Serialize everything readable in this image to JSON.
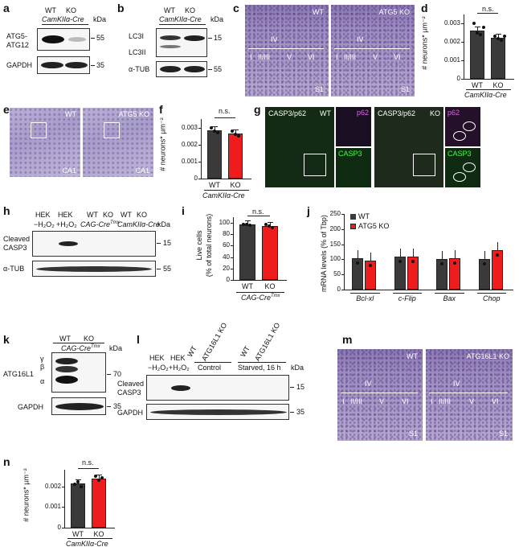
{
  "panel_labels": [
    "a",
    "b",
    "c",
    "d",
    "e",
    "f",
    "g",
    "h",
    "i",
    "j",
    "k",
    "l",
    "m",
    "n"
  ],
  "a": {
    "WT": "WT",
    "KO": "KO",
    "genotype": "CamKIIα-Cre",
    "kda": "kDa",
    "band1": "ATG5-",
    "band1b": "ATG12",
    "band2": "GAPDH",
    "m1": "55",
    "m2": "35"
  },
  "b": {
    "WT": "WT",
    "KO": "KO",
    "genotype": "CamKIIα-Cre",
    "kda": "kDa",
    "band1": "LC3I",
    "band1b": "LC3II",
    "band2": "α-TUB",
    "m1": "15",
    "m2": "55"
  },
  "c": {
    "wt_label": "WT",
    "ko_label": "ATG5 KO",
    "region": "S1",
    "layers": [
      "I",
      "II/III",
      "IV",
      "V",
      "VI"
    ]
  },
  "d": {
    "ylabel": "# neurons* µm⁻²",
    "sig": "n.s.",
    "genotype": "CamKIIα-Cre",
    "yticks": [
      "0",
      "0.001",
      "0.002",
      "0.003"
    ]
  },
  "e": {
    "wt_label": "WT",
    "ko_label": "ATG5 KO",
    "region": "CA1"
  },
  "f": {
    "ylabel": "# neurons* µm⁻²",
    "sig": "n.s.",
    "genotype": "CamKIIα-Cre",
    "yticks": [
      "0",
      "0.001",
      "0.002",
      "0.003"
    ]
  },
  "g": {
    "wt_title": "CASP3/p62",
    "wt_label": "WT",
    "ko_title": "CASP3/p62",
    "ko_label": "KO",
    "p62": "p62",
    "casp3": "CASP3"
  },
  "h": {
    "lanes": [
      "HEK",
      "HEK",
      "WT",
      "KO",
      "WT",
      "KO"
    ],
    "treat1": "−H₂O₂",
    "treat2": "+H₂O₂",
    "g1": "CAG-Cre",
    "g1sup": "Tmx",
    "g2": "CamKIIα-Cre",
    "kda": "kDa",
    "band1": "Cleaved",
    "band1b": "CASP3",
    "band2": "α-TUB",
    "m1": "15",
    "m2": "55"
  },
  "i": {
    "ylabel1": "Live cells",
    "ylabel2": "(% of total neurons)",
    "sig": "n.s.",
    "genotype": "CAG-Cre",
    "genotype_sup": "Tmx",
    "yticks": [
      "0",
      "20",
      "40",
      "60",
      "80",
      "100"
    ]
  },
  "j": {
    "ylabel": "mRNA levels (% of Tbp)",
    "legend": [
      "WT",
      "ATG5 KO"
    ],
    "genes": [
      "Bcl-xl",
      "c-Flip",
      "Bax",
      "Chop"
    ],
    "yticks": [
      "0",
      "50",
      "100",
      "150",
      "200",
      "250"
    ]
  },
  "k": {
    "WT": "WT",
    "KO": "KO",
    "genotype": "CAG-Cre",
    "genotype_sup": "Tmx",
    "kda": "kDa",
    "band1": "ATG16L1",
    "iso": [
      "γ",
      "β",
      "α"
    ],
    "band2": "GAPDH",
    "m1": "70",
    "m2": "35"
  },
  "l": {
    "lanes": [
      "HEK",
      "HEK",
      "WT",
      "ATG16L1 KO",
      "WT",
      "ATG16L1 KO"
    ],
    "treat1": "−H₂O₂",
    "treat2": "+H₂O₂",
    "cond1": "Control",
    "cond2": "Starved, 16 h",
    "kda": "kDa",
    "band1": "Cleaved",
    "band1b": "CASP3",
    "band2": "GAPDH",
    "m1": "15",
    "m2": "35"
  },
  "m": {
    "wt_label": "WT",
    "ko_label": "ATG16L1 KO",
    "region": "S1",
    "layers": [
      "I",
      "II/III",
      "IV",
      "V",
      "VI"
    ]
  },
  "n": {
    "ylabel": "# neurons* µm⁻²",
    "sig": "n.s.",
    "genotype": "CamKIIα-Cre",
    "yticks": [
      "0",
      "0.001",
      "0.002"
    ]
  },
  "chart_data": [
    {
      "type": "bar",
      "panel": "d",
      "categories": [
        "WT",
        "KO"
      ],
      "values": [
        0.00262,
        0.00222
      ],
      "ylabel": "# neurons* µm⁻²",
      "ylim": [
        0,
        0.0035
      ],
      "colors": [
        "#3a3a3a",
        "#3a3a3a"
      ]
    },
    {
      "type": "bar",
      "panel": "f",
      "categories": [
        "WT",
        "KO"
      ],
      "values": [
        0.00283,
        0.00267
      ],
      "ylabel": "# neurons* µm⁻²",
      "ylim": [
        0,
        0.0035
      ],
      "colors": [
        "#3a3a3a",
        "#ee1c1c"
      ]
    },
    {
      "type": "bar",
      "panel": "i",
      "categories": [
        "WT",
        "KO"
      ],
      "values": [
        97,
        95
      ],
      "ylabel": "Live cells (% of total neurons)",
      "ylim": [
        0,
        110
      ],
      "colors": [
        "#3a3a3a",
        "#ee1c1c"
      ]
    },
    {
      "type": "bar",
      "panel": "j",
      "categories": [
        "Bcl-xl",
        "c-Flip",
        "Bax",
        "Chop"
      ],
      "series": [
        {
          "name": "WT",
          "values": [
            103,
            108,
            100,
            100
          ]
        },
        {
          "name": "ATG5 KO",
          "values": [
            97,
            108,
            105,
            130
          ]
        }
      ],
      "ylabel": "mRNA levels (% of Tbp)",
      "ylim": [
        0,
        250
      ],
      "colors": [
        "#3a3a3a",
        "#ee1c1c"
      ]
    },
    {
      "type": "bar",
      "panel": "n",
      "categories": [
        "WT",
        "KO"
      ],
      "values": [
        0.00212,
        0.00238
      ],
      "ylabel": "# neurons* µm⁻²",
      "ylim": [
        0,
        0.0028
      ],
      "colors": [
        "#3a3a3a",
        "#ee1c1c"
      ]
    }
  ]
}
